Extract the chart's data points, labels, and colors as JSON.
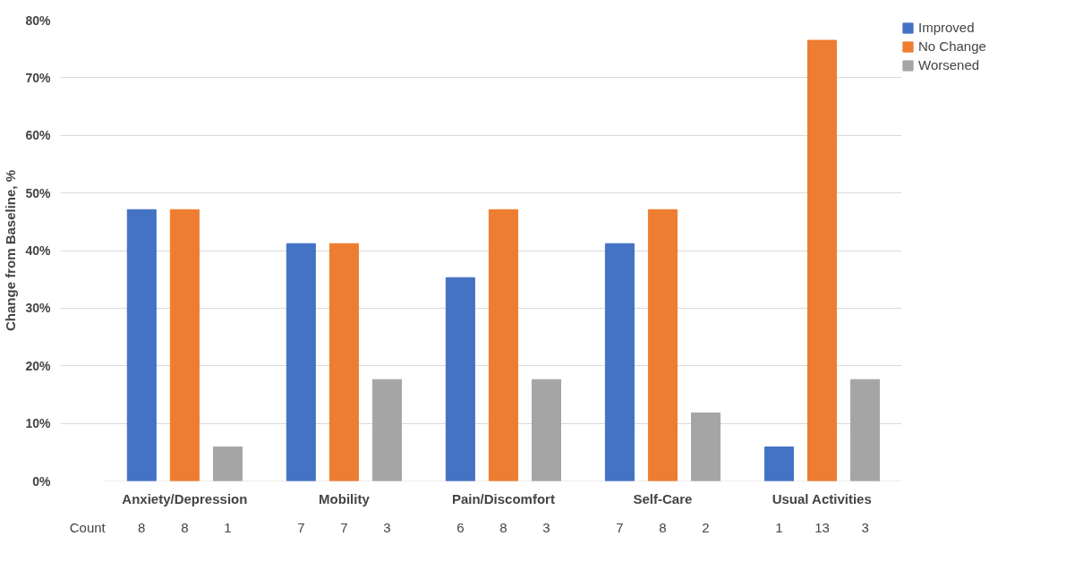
{
  "chart_data": {
    "type": "bar",
    "ylabel": "Change from Baseline, %",
    "categories": [
      "Anxiety/Depression",
      "Mobility",
      "Pain/Discomfort",
      "Self-Care",
      "Usual Activities"
    ],
    "series": [
      {
        "name": "Improved",
        "color": "#4472c4",
        "values": [
          47.1,
          41.2,
          35.3,
          41.2,
          5.9
        ]
      },
      {
        "name": "No Change",
        "color": "#ed7d31",
        "values": [
          47.1,
          41.2,
          47.1,
          47.1,
          76.5
        ]
      },
      {
        "name": "Worsened",
        "color": "#a5a5a5",
        "values": [
          5.9,
          17.6,
          17.6,
          11.8,
          17.6
        ]
      }
    ],
    "ylim": [
      0,
      80
    ],
    "yticks": [
      {
        "value": 0,
        "label": "0%"
      },
      {
        "value": 10,
        "label": "10%"
      },
      {
        "value": 20,
        "label": "20%"
      },
      {
        "value": 30,
        "label": "30%"
      },
      {
        "value": 40,
        "label": "40%"
      },
      {
        "value": 50,
        "label": "50%"
      },
      {
        "value": 60,
        "label": "60%"
      },
      {
        "value": 70,
        "label": "70%"
      },
      {
        "value": 80,
        "label": "80%"
      }
    ],
    "grid": "y",
    "legend": "top right",
    "annotations": [
      "Count",
      "8",
      "8",
      "1",
      "7",
      "7",
      "3",
      "6",
      "8",
      "3",
      "7",
      "8",
      "2",
      "1",
      "13",
      "3"
    ]
  }
}
